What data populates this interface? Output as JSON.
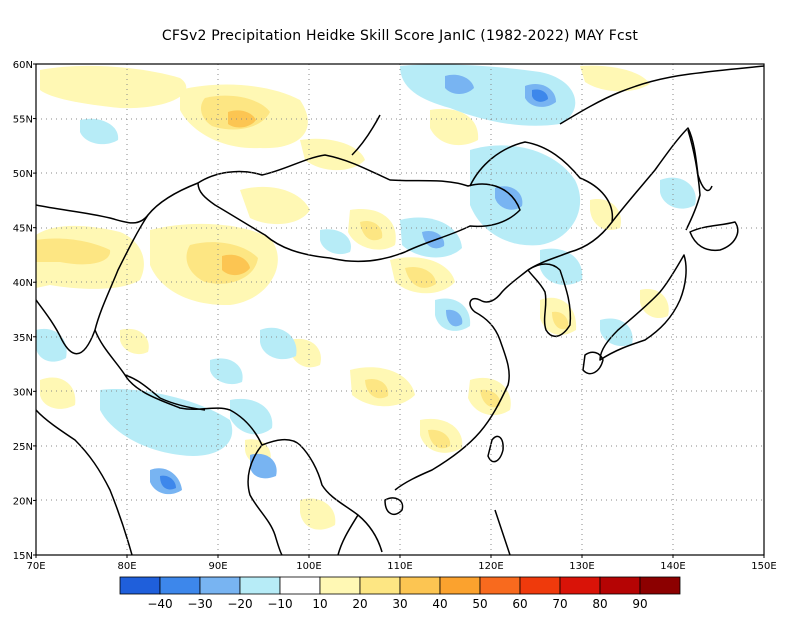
{
  "title": "CFSv2  Precipitation Heidke Skill Score JanIC (1982-2022) MAY Fcst",
  "map": {
    "lon_range": [
      70,
      150
    ],
    "lat_range": [
      15,
      60
    ],
    "lon_ticks": [
      "70E",
      "80E",
      "90E",
      "100E",
      "110E",
      "120E",
      "130E",
      "140E",
      "150E"
    ],
    "lat_ticks": [
      "15N",
      "20N",
      "25N",
      "30N",
      "35N",
      "40N",
      "45N",
      "50N",
      "55N",
      "60N"
    ],
    "grid": "dotted"
  },
  "colorbar": {
    "colors": [
      "#1f5fdb",
      "#3d87eb",
      "#78b4f2",
      "#b7ecf7",
      "#ffffff",
      "#fff8b4",
      "#fde683",
      "#fcc552",
      "#fba22e",
      "#f86a1e",
      "#ef3a0c",
      "#d91308",
      "#b50404",
      "#8c0000"
    ],
    "labels": [
      "-40",
      "-30",
      "-20",
      "-10",
      "10",
      "20",
      "30",
      "40",
      "50",
      "60",
      "70",
      "80",
      "90"
    ]
  }
}
